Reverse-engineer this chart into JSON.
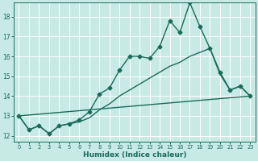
{
  "xlabel": "Humidex (Indice chaleur)",
  "bg_color": "#c8eae4",
  "grid_color": "#ffffff",
  "line_color": "#1a6b5a",
  "xlim": [
    -0.5,
    23.5
  ],
  "ylim": [
    11.7,
    18.7
  ],
  "xticks": [
    0,
    1,
    2,
    3,
    4,
    5,
    6,
    7,
    8,
    9,
    10,
    11,
    12,
    13,
    14,
    15,
    16,
    17,
    18,
    19,
    20,
    21,
    22,
    23
  ],
  "yticks": [
    12,
    13,
    14,
    15,
    16,
    17,
    18
  ],
  "series": [
    {
      "x": [
        0,
        1,
        2,
        3,
        4,
        5,
        6,
        7,
        8,
        9,
        10,
        11,
        12,
        13,
        14,
        15,
        16,
        17,
        18,
        19,
        20,
        21,
        22,
        23
      ],
      "y": [
        13.0,
        12.3,
        12.5,
        12.1,
        12.5,
        12.6,
        12.8,
        13.2,
        14.1,
        14.4,
        15.3,
        16.0,
        16.0,
        15.9,
        16.5,
        17.8,
        17.2,
        18.7,
        17.5,
        16.4,
        15.2,
        14.3,
        14.5,
        14.0
      ],
      "marker": "D",
      "markersize": 2.5,
      "linewidth": 1.0
    },
    {
      "x": [
        0,
        1,
        2,
        3,
        4,
        5,
        6,
        7,
        8,
        9,
        10,
        11,
        12,
        13,
        14,
        15,
        16,
        17,
        18,
        19,
        20,
        21,
        22,
        23
      ],
      "y": [
        13.0,
        12.3,
        12.5,
        12.1,
        12.5,
        12.6,
        12.7,
        12.9,
        13.3,
        13.6,
        14.0,
        14.3,
        14.6,
        14.9,
        15.2,
        15.5,
        15.7,
        16.0,
        16.2,
        16.4,
        15.1,
        14.3,
        14.5,
        14.0
      ],
      "marker": null,
      "linewidth": 1.0
    },
    {
      "x": [
        0,
        23
      ],
      "y": [
        13.0,
        14.0
      ],
      "marker": null,
      "linewidth": 1.0
    }
  ]
}
